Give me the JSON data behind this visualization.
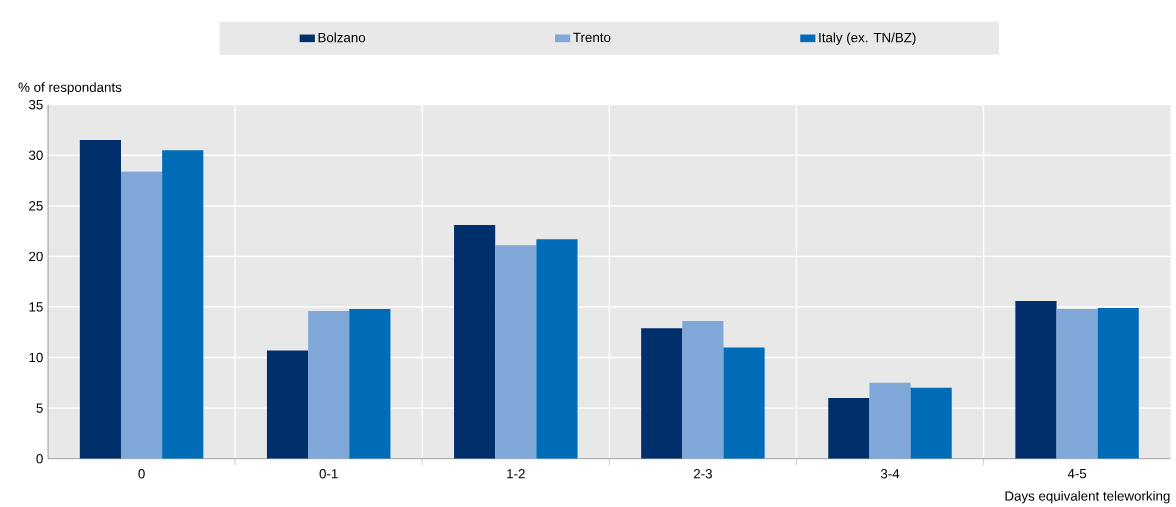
{
  "chart_data": {
    "type": "bar",
    "ylabel": "% of respondants",
    "xlabel": "Days equivalent teleworking",
    "categories": [
      "0",
      "0-1",
      "1-2",
      "2-3",
      "3-4",
      "4-5"
    ],
    "series": [
      {
        "name": "Bolzano",
        "color": "#002f6c",
        "values": [
          31.5,
          10.7,
          23.1,
          12.9,
          6.0,
          15.6
        ]
      },
      {
        "name": "Trento",
        "color": "#7fa8d9",
        "values": [
          28.4,
          14.6,
          21.1,
          13.6,
          7.5,
          14.8
        ]
      },
      {
        "name": "Italy (ex. TN/BZ)",
        "color": "#006bb6",
        "values": [
          30.5,
          14.8,
          21.7,
          11.0,
          7.0,
          14.9
        ]
      }
    ],
    "ylim": [
      0,
      35
    ],
    "yticks": [
      0,
      5,
      10,
      15,
      20,
      25,
      30,
      35
    ],
    "grid": true,
    "legend": "top"
  }
}
